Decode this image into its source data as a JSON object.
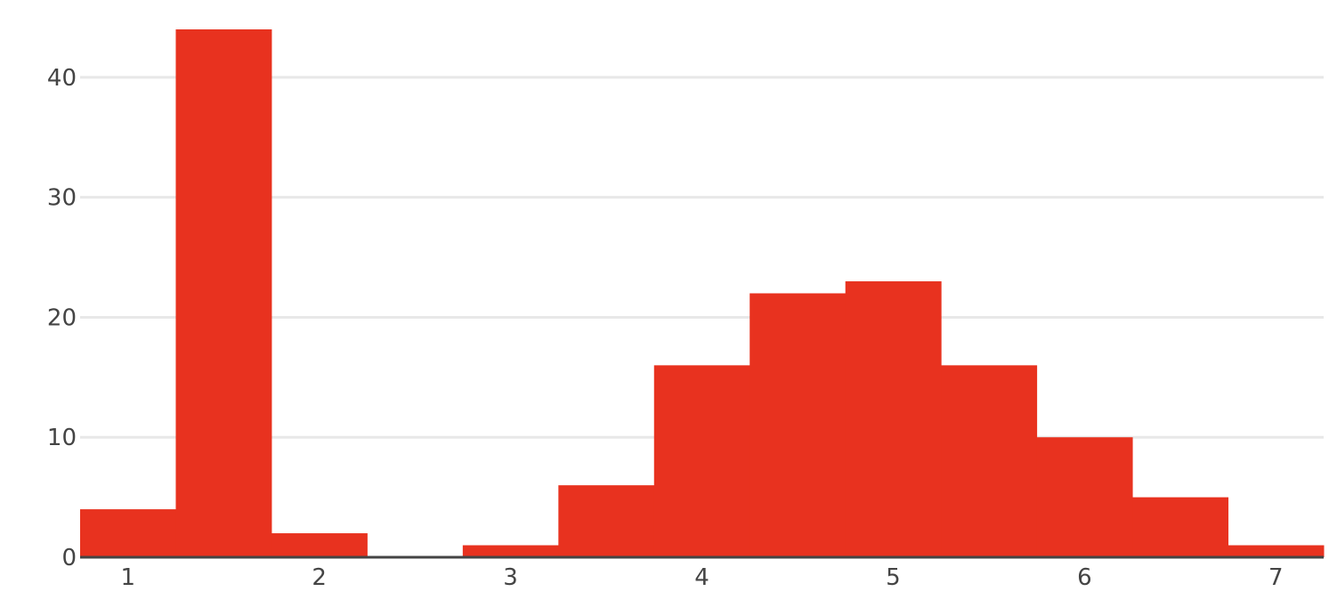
{
  "chart_data": {
    "type": "bar",
    "style": "histogram",
    "bin_width": 0.5,
    "bins": [
      {
        "x0": 0.75,
        "x1": 1.25,
        "count": 4
      },
      {
        "x0": 1.25,
        "x1": 1.75,
        "count": 44
      },
      {
        "x0": 1.75,
        "x1": 2.25,
        "count": 2
      },
      {
        "x0": 2.25,
        "x1": 2.75,
        "count": 0
      },
      {
        "x0": 2.75,
        "x1": 3.25,
        "count": 1
      },
      {
        "x0": 3.25,
        "x1": 3.75,
        "count": 6
      },
      {
        "x0": 3.75,
        "x1": 4.25,
        "count": 16
      },
      {
        "x0": 4.25,
        "x1": 4.75,
        "count": 22
      },
      {
        "x0": 4.75,
        "x1": 5.25,
        "count": 23
      },
      {
        "x0": 5.25,
        "x1": 5.75,
        "count": 16
      },
      {
        "x0": 5.75,
        "x1": 6.25,
        "count": 10
      },
      {
        "x0": 6.25,
        "x1": 6.75,
        "count": 5
      },
      {
        "x0": 6.75,
        "x1": 7.25,
        "count": 1
      }
    ],
    "xlim": [
      0.75,
      7.25
    ],
    "ylim": [
      0,
      44
    ],
    "x_ticks": [
      "1",
      "2",
      "3",
      "4",
      "5",
      "6",
      "7"
    ],
    "y_ticks": [
      "0",
      "10",
      "20",
      "30",
      "40"
    ],
    "title": "",
    "xlabel": "",
    "ylabel": "",
    "grid": "horizontal",
    "legend": "none",
    "bar_color": "#e8321f",
    "grid_color": "#e8e8e8",
    "axis_color": "#444444"
  }
}
